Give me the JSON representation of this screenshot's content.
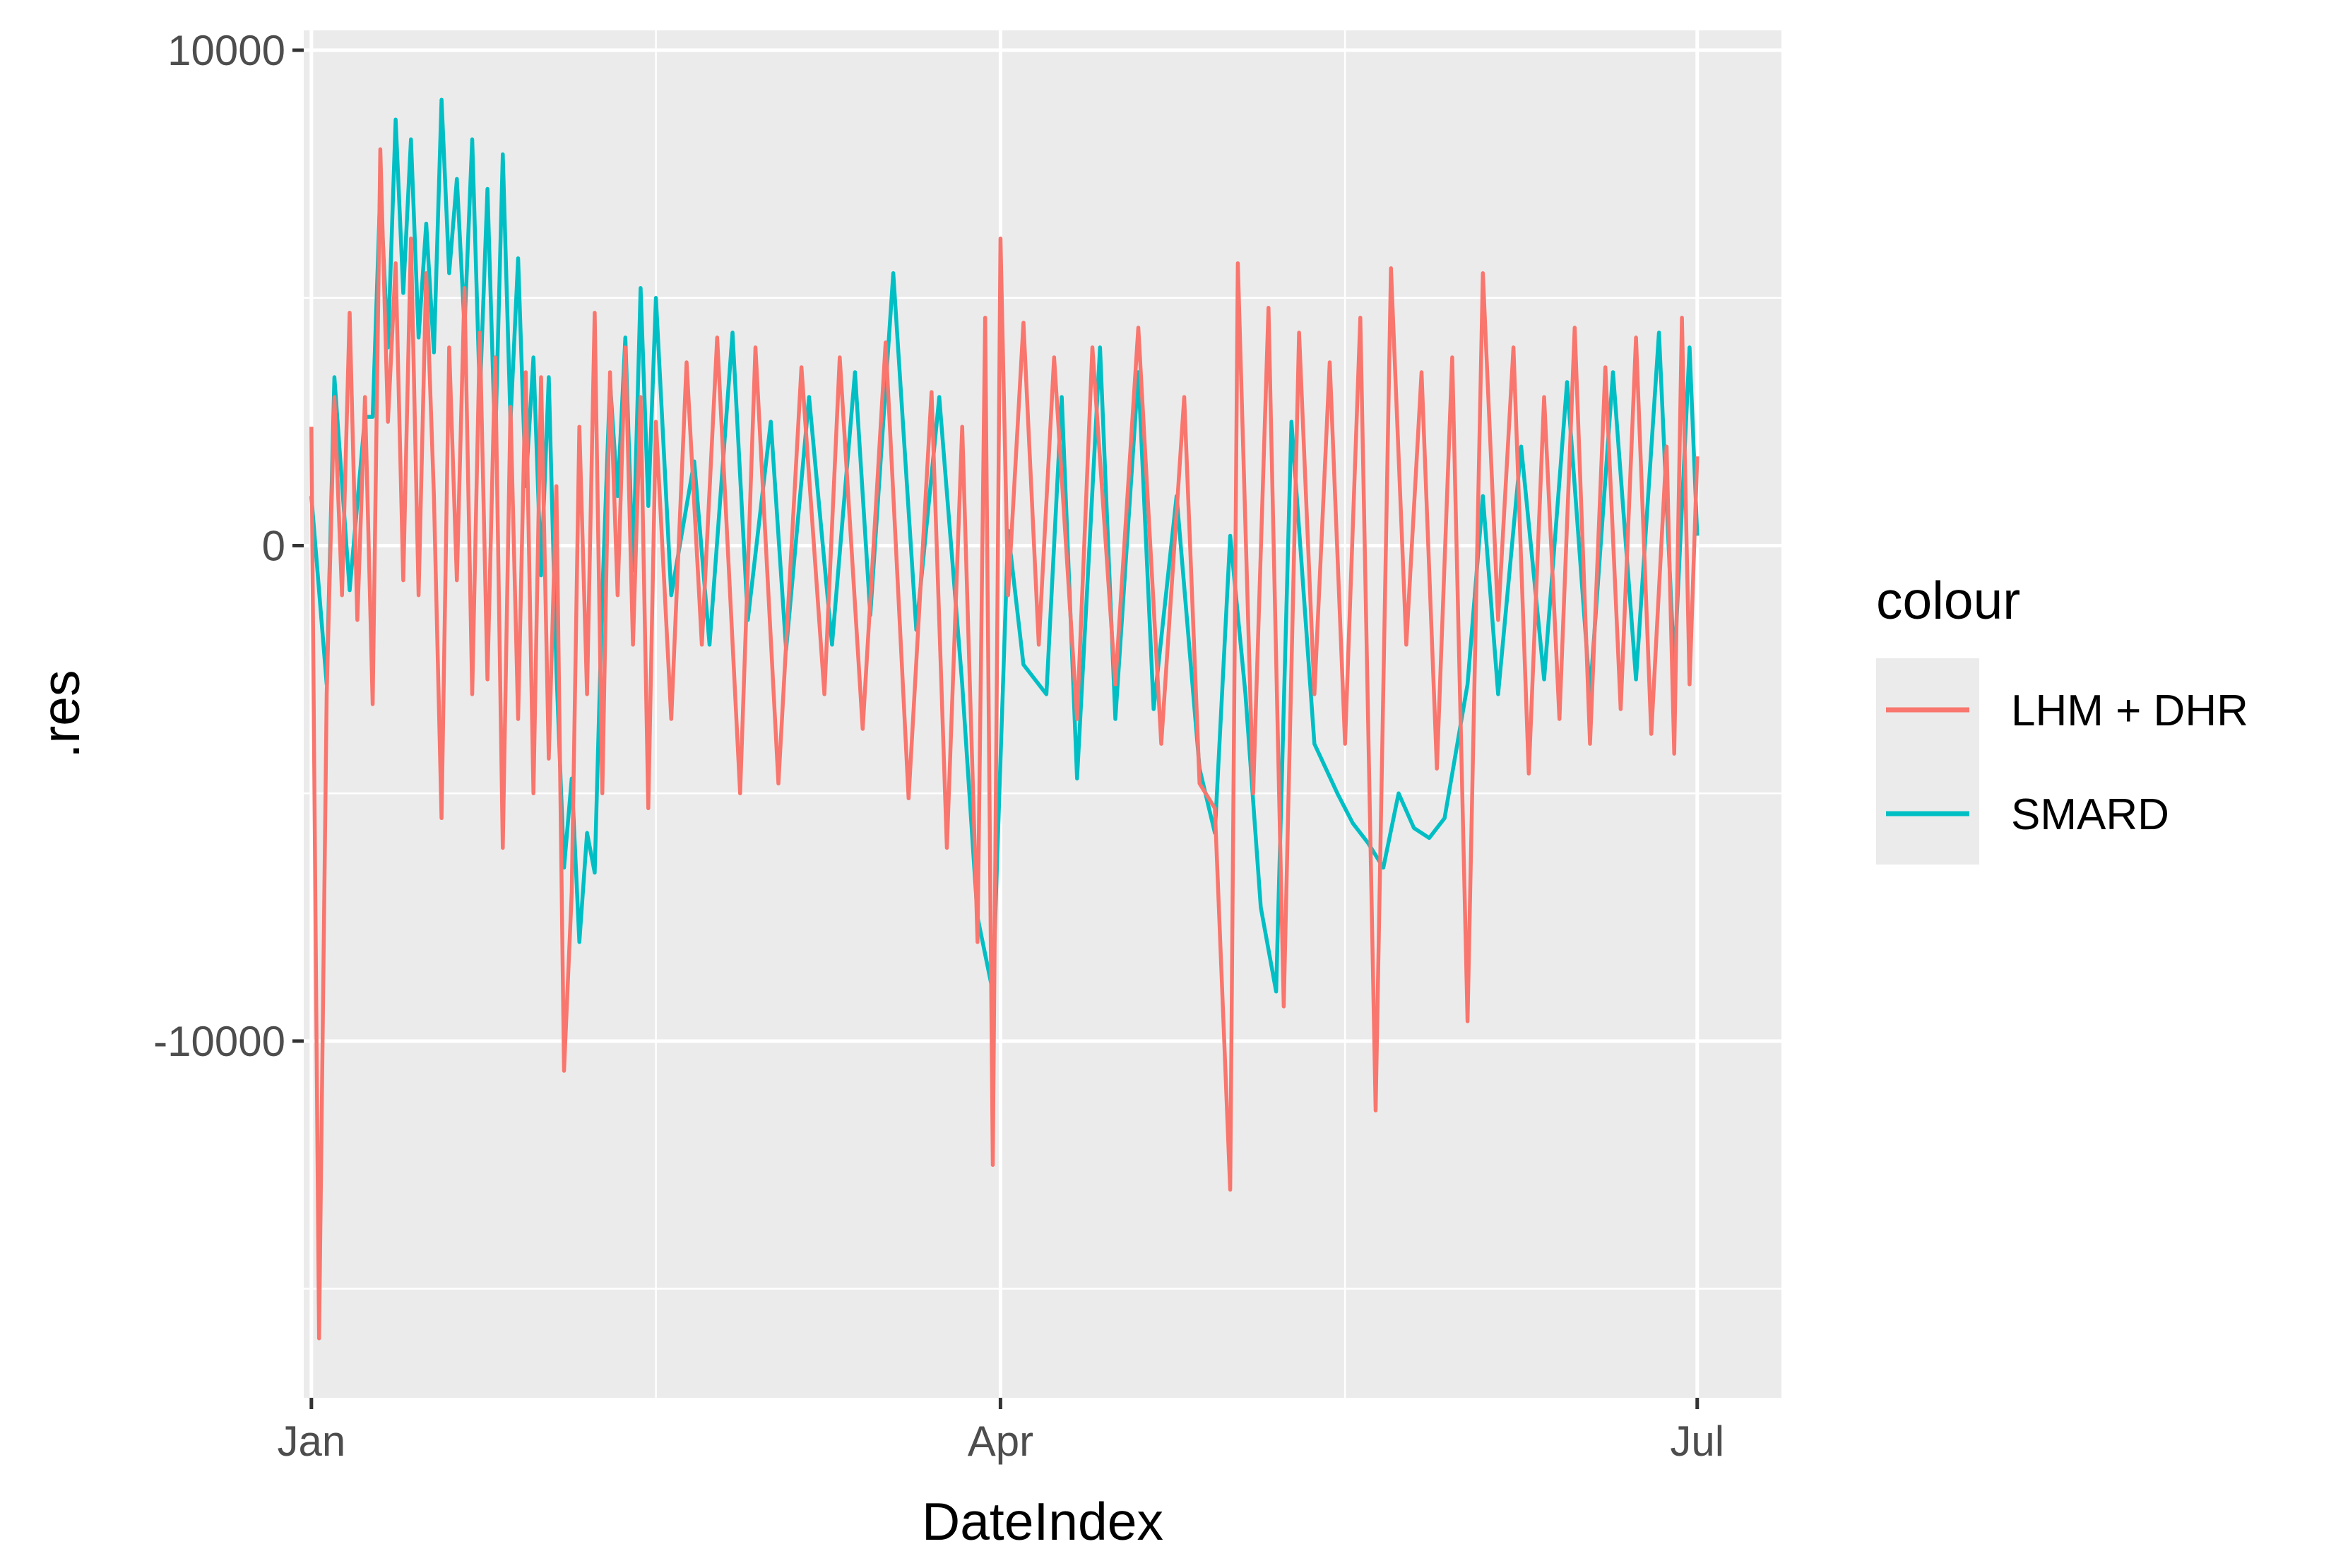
{
  "chart_data": {
    "type": "line",
    "title": "",
    "xlabel": "DateIndex",
    "ylabel": ".res",
    "x_range": [
      "2021-12-31",
      "2022-07-12"
    ],
    "ylim": [
      -17200,
      10400
    ],
    "x_ticks": [
      {
        "date": "2022-01-01",
        "label": "Jan"
      },
      {
        "date": "2022-04-01",
        "label": "Apr"
      },
      {
        "date": "2022-07-01",
        "label": "Jul"
      }
    ],
    "x_minor_ticks": [
      "2022-02-15",
      "2022-05-16"
    ],
    "y_ticks": [
      {
        "value": 10000,
        "label": "10000"
      },
      {
        "value": 0,
        "label": "0"
      },
      {
        "value": -10000,
        "label": "-10000"
      }
    ],
    "y_minor_ticks": [
      5000,
      -5000,
      -15000
    ],
    "grid": true,
    "legend": {
      "title": "colour",
      "position": "right"
    },
    "series": [
      {
        "name": "SMARD",
        "color": "#00BFC4",
        "points": [
          [
            "2022-01-01",
            1000
          ],
          [
            "2022-01-03",
            -2800
          ],
          [
            "2022-01-04",
            3400
          ],
          [
            "2022-01-06",
            -900
          ],
          [
            "2022-01-08",
            2600
          ],
          [
            "2022-01-09",
            2600
          ],
          [
            "2022-01-10",
            7200
          ],
          [
            "2022-01-11",
            4000
          ],
          [
            "2022-01-12",
            8600
          ],
          [
            "2022-01-13",
            5100
          ],
          [
            "2022-01-14",
            8200
          ],
          [
            "2022-01-15",
            4200
          ],
          [
            "2022-01-16",
            6500
          ],
          [
            "2022-01-17",
            3900
          ],
          [
            "2022-01-18",
            9000
          ],
          [
            "2022-01-19",
            5500
          ],
          [
            "2022-01-20",
            7400
          ],
          [
            "2022-01-21",
            4400
          ],
          [
            "2022-01-22",
            8200
          ],
          [
            "2022-01-23",
            3000
          ],
          [
            "2022-01-24",
            7200
          ],
          [
            "2022-01-25",
            2000
          ],
          [
            "2022-01-26",
            7900
          ],
          [
            "2022-01-27",
            2500
          ],
          [
            "2022-01-28",
            5800
          ],
          [
            "2022-01-29",
            1200
          ],
          [
            "2022-01-30",
            3800
          ],
          [
            "2022-01-31",
            -600
          ],
          [
            "2022-02-01",
            3400
          ],
          [
            "2022-02-02",
            -2500
          ],
          [
            "2022-02-03",
            -6500
          ],
          [
            "2022-02-04",
            -4700
          ],
          [
            "2022-02-05",
            -8000
          ],
          [
            "2022-02-06",
            -5800
          ],
          [
            "2022-02-07",
            -6600
          ],
          [
            "2022-02-08",
            -1000
          ],
          [
            "2022-02-09",
            3300
          ],
          [
            "2022-02-10",
            1000
          ],
          [
            "2022-02-11",
            4200
          ],
          [
            "2022-02-12",
            -500
          ],
          [
            "2022-02-13",
            5200
          ],
          [
            "2022-02-14",
            800
          ],
          [
            "2022-02-15",
            5000
          ],
          [
            "2022-02-17",
            -1000
          ],
          [
            "2022-02-20",
            1700
          ],
          [
            "2022-02-22",
            -2000
          ],
          [
            "2022-02-25",
            4300
          ],
          [
            "2022-02-27",
            -1500
          ],
          [
            "2022-03-02",
            2500
          ],
          [
            "2022-03-04",
            -2100
          ],
          [
            "2022-03-07",
            3000
          ],
          [
            "2022-03-10",
            -2000
          ],
          [
            "2022-03-13",
            3500
          ],
          [
            "2022-03-15",
            -1400
          ],
          [
            "2022-03-18",
            5500
          ],
          [
            "2022-03-21",
            -1700
          ],
          [
            "2022-03-24",
            3000
          ],
          [
            "2022-03-27",
            -2800
          ],
          [
            "2022-03-29",
            -7500
          ],
          [
            "2022-03-31",
            -9000
          ],
          [
            "2022-04-02",
            300
          ],
          [
            "2022-04-04",
            -2400
          ],
          [
            "2022-04-07",
            -3000
          ],
          [
            "2022-04-09",
            3000
          ],
          [
            "2022-04-11",
            -4700
          ],
          [
            "2022-04-14",
            4000
          ],
          [
            "2022-04-16",
            -3500
          ],
          [
            "2022-04-19",
            3500
          ],
          [
            "2022-04-21",
            -3300
          ],
          [
            "2022-04-24",
            1000
          ],
          [
            "2022-04-27",
            -4500
          ],
          [
            "2022-04-29",
            -5800
          ],
          [
            "2022-05-01",
            200
          ],
          [
            "2022-05-03",
            -3000
          ],
          [
            "2022-05-05",
            -7300
          ],
          [
            "2022-05-07",
            -9000
          ],
          [
            "2022-05-09",
            2500
          ],
          [
            "2022-05-12",
            -4000
          ],
          [
            "2022-05-15",
            -5000
          ],
          [
            "2022-05-17",
            -5600
          ],
          [
            "2022-05-19",
            -6000
          ],
          [
            "2022-05-21",
            -6500
          ],
          [
            "2022-05-23",
            -5000
          ],
          [
            "2022-05-25",
            -5700
          ],
          [
            "2022-05-27",
            -5900
          ],
          [
            "2022-05-29",
            -5500
          ],
          [
            "2022-06-01",
            -2800
          ],
          [
            "2022-06-03",
            1000
          ],
          [
            "2022-06-05",
            -3000
          ],
          [
            "2022-06-08",
            2000
          ],
          [
            "2022-06-11",
            -2700
          ],
          [
            "2022-06-14",
            3300
          ],
          [
            "2022-06-17",
            -3000
          ],
          [
            "2022-06-20",
            3500
          ],
          [
            "2022-06-23",
            -2700
          ],
          [
            "2022-06-26",
            4300
          ],
          [
            "2022-06-28",
            -2500
          ],
          [
            "2022-06-30",
            4000
          ],
          [
            "2022-07-01",
            200
          ]
        ]
      },
      {
        "name": "LHM + DHR",
        "color": "#F8766D",
        "points": [
          [
            "2022-01-01",
            2400
          ],
          [
            "2022-01-02",
            -16000
          ],
          [
            "2022-01-03",
            -3000
          ],
          [
            "2022-01-04",
            3000
          ],
          [
            "2022-01-05",
            -1000
          ],
          [
            "2022-01-06",
            4700
          ],
          [
            "2022-01-07",
            -1500
          ],
          [
            "2022-01-08",
            3000
          ],
          [
            "2022-01-09",
            -3200
          ],
          [
            "2022-01-10",
            8000
          ],
          [
            "2022-01-11",
            2500
          ],
          [
            "2022-01-12",
            5700
          ],
          [
            "2022-01-13",
            -700
          ],
          [
            "2022-01-14",
            6200
          ],
          [
            "2022-01-15",
            -1000
          ],
          [
            "2022-01-16",
            5500
          ],
          [
            "2022-01-17",
            1000
          ],
          [
            "2022-01-18",
            -5500
          ],
          [
            "2022-01-19",
            4000
          ],
          [
            "2022-01-20",
            -700
          ],
          [
            "2022-01-21",
            5200
          ],
          [
            "2022-01-22",
            -3000
          ],
          [
            "2022-01-23",
            4300
          ],
          [
            "2022-01-24",
            -2700
          ],
          [
            "2022-01-25",
            3800
          ],
          [
            "2022-01-26",
            -6100
          ],
          [
            "2022-01-27",
            2800
          ],
          [
            "2022-01-28",
            -3500
          ],
          [
            "2022-01-29",
            3500
          ],
          [
            "2022-01-30",
            -5000
          ],
          [
            "2022-01-31",
            3400
          ],
          [
            "2022-02-01",
            -4300
          ],
          [
            "2022-02-02",
            1200
          ],
          [
            "2022-02-03",
            -10600
          ],
          [
            "2022-02-04",
            -7000
          ],
          [
            "2022-02-05",
            2400
          ],
          [
            "2022-02-06",
            -3000
          ],
          [
            "2022-02-07",
            4700
          ],
          [
            "2022-02-08",
            -5000
          ],
          [
            "2022-02-09",
            3500
          ],
          [
            "2022-02-10",
            -1000
          ],
          [
            "2022-02-11",
            4000
          ],
          [
            "2022-02-12",
            -2000
          ],
          [
            "2022-02-13",
            3000
          ],
          [
            "2022-02-14",
            -5300
          ],
          [
            "2022-02-15",
            2500
          ],
          [
            "2022-02-17",
            -3500
          ],
          [
            "2022-02-19",
            3700
          ],
          [
            "2022-02-21",
            -2000
          ],
          [
            "2022-02-23",
            4200
          ],
          [
            "2022-02-26",
            -5000
          ],
          [
            "2022-02-28",
            4000
          ],
          [
            "2022-03-03",
            -4800
          ],
          [
            "2022-03-06",
            3600
          ],
          [
            "2022-03-09",
            -3000
          ],
          [
            "2022-03-11",
            3800
          ],
          [
            "2022-03-14",
            -3700
          ],
          [
            "2022-03-17",
            4100
          ],
          [
            "2022-03-20",
            -5100
          ],
          [
            "2022-03-23",
            3100
          ],
          [
            "2022-03-25",
            -6100
          ],
          [
            "2022-03-27",
            2400
          ],
          [
            "2022-03-29",
            -8000
          ],
          [
            "2022-03-30",
            4600
          ],
          [
            "2022-03-31",
            -12500
          ],
          [
            "2022-04-01",
            6200
          ],
          [
            "2022-04-02",
            -1000
          ],
          [
            "2022-04-04",
            4500
          ],
          [
            "2022-04-06",
            -2000
          ],
          [
            "2022-04-08",
            3800
          ],
          [
            "2022-04-11",
            -3500
          ],
          [
            "2022-04-13",
            4000
          ],
          [
            "2022-04-16",
            -2800
          ],
          [
            "2022-04-19",
            4400
          ],
          [
            "2022-04-22",
            -4000
          ],
          [
            "2022-04-25",
            3000
          ],
          [
            "2022-04-27",
            -4800
          ],
          [
            "2022-04-29",
            -5300
          ],
          [
            "2022-05-01",
            -13000
          ],
          [
            "2022-05-02",
            5700
          ],
          [
            "2022-05-04",
            -5000
          ],
          [
            "2022-05-06",
            4800
          ],
          [
            "2022-05-08",
            -9300
          ],
          [
            "2022-05-10",
            4300
          ],
          [
            "2022-05-12",
            -3000
          ],
          [
            "2022-05-14",
            3700
          ],
          [
            "2022-05-16",
            -4000
          ],
          [
            "2022-05-18",
            4600
          ],
          [
            "2022-05-20",
            -11400
          ],
          [
            "2022-05-22",
            5600
          ],
          [
            "2022-05-24",
            -2000
          ],
          [
            "2022-05-26",
            3500
          ],
          [
            "2022-05-28",
            -4500
          ],
          [
            "2022-05-30",
            3800
          ],
          [
            "2022-06-01",
            -9600
          ],
          [
            "2022-06-03",
            5500
          ],
          [
            "2022-06-05",
            -1500
          ],
          [
            "2022-06-07",
            4000
          ],
          [
            "2022-06-09",
            -4600
          ],
          [
            "2022-06-11",
            3000
          ],
          [
            "2022-06-13",
            -3500
          ],
          [
            "2022-06-15",
            4400
          ],
          [
            "2022-06-17",
            -4000
          ],
          [
            "2022-06-19",
            3600
          ],
          [
            "2022-06-21",
            -3300
          ],
          [
            "2022-06-23",
            4200
          ],
          [
            "2022-06-25",
            -3800
          ],
          [
            "2022-06-27",
            2000
          ],
          [
            "2022-06-28",
            -4200
          ],
          [
            "2022-06-29",
            4600
          ],
          [
            "2022-06-30",
            -2800
          ],
          [
            "2022-07-01",
            1800
          ]
        ]
      }
    ]
  }
}
